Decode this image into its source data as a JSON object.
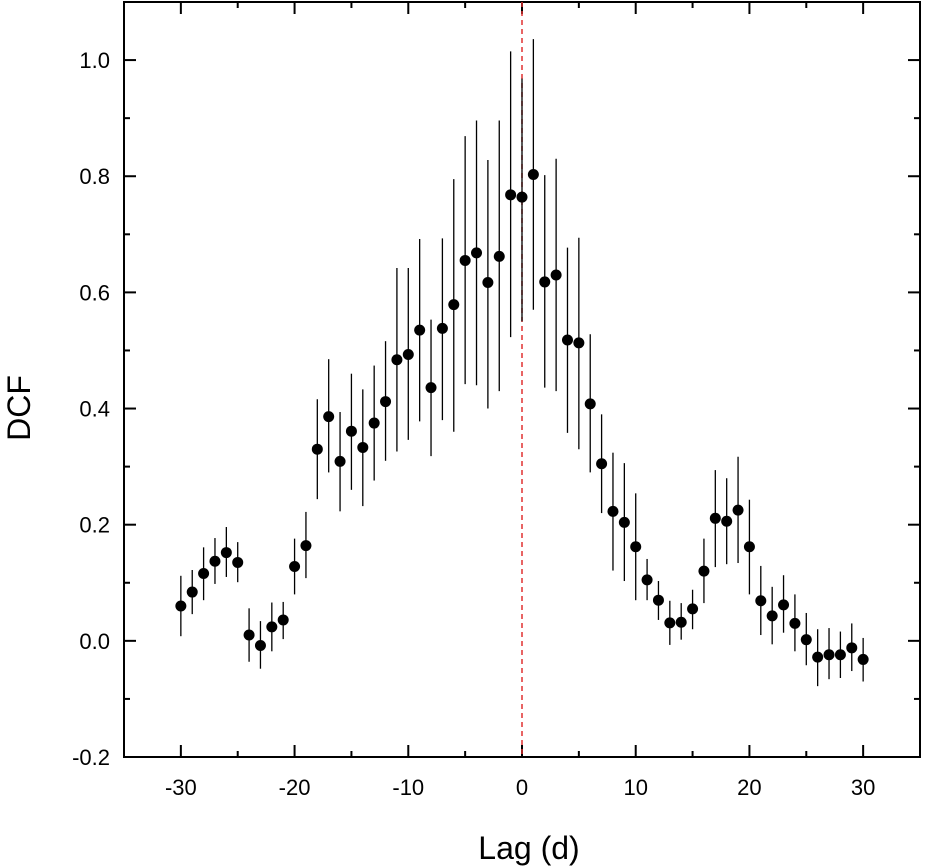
{
  "chart_data": {
    "type": "scatter",
    "xlabel": "Lag (d)",
    "ylabel": "DCF",
    "xlim": [
      -35,
      35
    ],
    "ylim": [
      -0.2,
      1.1
    ],
    "xticks": [
      "-30",
      "-20",
      "-10",
      "0",
      "10",
      "20",
      "30"
    ],
    "yticks": [
      "-0.2",
      "0.0",
      "0.2",
      "0.4",
      "0.6",
      "0.8",
      "1.0"
    ],
    "reference_line": {
      "x": 0,
      "style": "dashed",
      "color": "#e03030"
    },
    "marker_color": "#000000",
    "points": [
      {
        "x": -30,
        "y": 0.06,
        "lo": 0.008,
        "hi": 0.112
      },
      {
        "x": -29,
        "y": 0.084,
        "lo": 0.046,
        "hi": 0.122
      },
      {
        "x": -28,
        "y": 0.116,
        "lo": 0.07,
        "hi": 0.161
      },
      {
        "x": -27,
        "y": 0.137,
        "lo": 0.098,
        "hi": 0.177
      },
      {
        "x": -26,
        "y": 0.152,
        "lo": 0.11,
        "hi": 0.196
      },
      {
        "x": -25,
        "y": 0.135,
        "lo": 0.101,
        "hi": 0.17
      },
      {
        "x": -24,
        "y": 0.01,
        "lo": -0.036,
        "hi": 0.056
      },
      {
        "x": -23,
        "y": -0.008,
        "lo": -0.048,
        "hi": 0.034
      },
      {
        "x": -22,
        "y": 0.024,
        "lo": -0.018,
        "hi": 0.066
      },
      {
        "x": -21,
        "y": 0.036,
        "lo": 0.003,
        "hi": 0.067
      },
      {
        "x": -20,
        "y": 0.128,
        "lo": 0.08,
        "hi": 0.176
      },
      {
        "x": -19,
        "y": 0.164,
        "lo": 0.108,
        "hi": 0.222
      },
      {
        "x": -18,
        "y": 0.33,
        "lo": 0.244,
        "hi": 0.416
      },
      {
        "x": -17,
        "y": 0.386,
        "lo": 0.29,
        "hi": 0.485
      },
      {
        "x": -16,
        "y": 0.309,
        "lo": 0.223,
        "hi": 0.394
      },
      {
        "x": -15,
        "y": 0.361,
        "lo": 0.26,
        "hi": 0.46
      },
      {
        "x": -14,
        "y": 0.333,
        "lo": 0.232,
        "hi": 0.433
      },
      {
        "x": -13,
        "y": 0.375,
        "lo": 0.276,
        "hi": 0.474
      },
      {
        "x": -12,
        "y": 0.412,
        "lo": 0.31,
        "hi": 0.516
      },
      {
        "x": -11,
        "y": 0.484,
        "lo": 0.326,
        "hi": 0.642
      },
      {
        "x": -10,
        "y": 0.493,
        "lo": 0.346,
        "hi": 0.642
      },
      {
        "x": -9,
        "y": 0.535,
        "lo": 0.378,
        "hi": 0.692
      },
      {
        "x": -8,
        "y": 0.436,
        "lo": 0.318,
        "hi": 0.553
      },
      {
        "x": -7,
        "y": 0.538,
        "lo": 0.38,
        "hi": 0.693
      },
      {
        "x": -6,
        "y": 0.579,
        "lo": 0.36,
        "hi": 0.795
      },
      {
        "x": -5,
        "y": 0.655,
        "lo": 0.442,
        "hi": 0.869
      },
      {
        "x": -4,
        "y": 0.668,
        "lo": 0.44,
        "hi": 0.896
      },
      {
        "x": -3,
        "y": 0.617,
        "lo": 0.4,
        "hi": 0.828
      },
      {
        "x": -2,
        "y": 0.662,
        "lo": 0.43,
        "hi": 0.896
      },
      {
        "x": -1,
        "y": 0.768,
        "lo": 0.523,
        "hi": 1.015
      },
      {
        "x": 0,
        "y": 0.764,
        "lo": 0.55,
        "hi": 0.968
      },
      {
        "x": 1,
        "y": 0.803,
        "lo": 0.57,
        "hi": 1.036
      },
      {
        "x": 2,
        "y": 0.618,
        "lo": 0.436,
        "hi": 0.802
      },
      {
        "x": 3,
        "y": 0.63,
        "lo": 0.43,
        "hi": 0.83
      },
      {
        "x": 4,
        "y": 0.518,
        "lo": 0.358,
        "hi": 0.677
      },
      {
        "x": 5,
        "y": 0.513,
        "lo": 0.33,
        "hi": 0.694
      },
      {
        "x": 6,
        "y": 0.408,
        "lo": 0.29,
        "hi": 0.528
      },
      {
        "x": 7,
        "y": 0.305,
        "lo": 0.22,
        "hi": 0.39
      },
      {
        "x": 8,
        "y": 0.223,
        "lo": 0.121,
        "hi": 0.324
      },
      {
        "x": 9,
        "y": 0.204,
        "lo": 0.103,
        "hi": 0.306
      },
      {
        "x": 10,
        "y": 0.162,
        "lo": 0.07,
        "hi": 0.254
      },
      {
        "x": 11,
        "y": 0.105,
        "lo": 0.07,
        "hi": 0.141
      },
      {
        "x": 12,
        "y": 0.07,
        "lo": 0.036,
        "hi": 0.103
      },
      {
        "x": 13,
        "y": 0.031,
        "lo": -0.007,
        "hi": 0.069
      },
      {
        "x": 14,
        "y": 0.032,
        "lo": 0.002,
        "hi": 0.065
      },
      {
        "x": 15,
        "y": 0.055,
        "lo": 0.02,
        "hi": 0.088
      },
      {
        "x": 16,
        "y": 0.12,
        "lo": 0.065,
        "hi": 0.176
      },
      {
        "x": 17,
        "y": 0.211,
        "lo": 0.127,
        "hi": 0.294
      },
      {
        "x": 18,
        "y": 0.206,
        "lo": 0.132,
        "hi": 0.28
      },
      {
        "x": 19,
        "y": 0.225,
        "lo": 0.134,
        "hi": 0.317
      },
      {
        "x": 20,
        "y": 0.162,
        "lo": 0.08,
        "hi": 0.243
      },
      {
        "x": 21,
        "y": 0.069,
        "lo": 0.01,
        "hi": 0.129
      },
      {
        "x": 22,
        "y": 0.043,
        "lo": -0.006,
        "hi": 0.093
      },
      {
        "x": 23,
        "y": 0.062,
        "lo": 0.014,
        "hi": 0.113
      },
      {
        "x": 24,
        "y": 0.03,
        "lo": -0.018,
        "hi": 0.08
      },
      {
        "x": 25,
        "y": 0.002,
        "lo": -0.042,
        "hi": 0.048
      },
      {
        "x": 26,
        "y": -0.028,
        "lo": -0.078,
        "hi": 0.02
      },
      {
        "x": 27,
        "y": -0.024,
        "lo": -0.066,
        "hi": 0.022
      },
      {
        "x": 28,
        "y": -0.024,
        "lo": -0.064,
        "hi": 0.016
      },
      {
        "x": 29,
        "y": -0.012,
        "lo": -0.052,
        "hi": 0.03
      },
      {
        "x": 30,
        "y": -0.032,
        "lo": -0.07,
        "hi": 0.005
      }
    ]
  }
}
